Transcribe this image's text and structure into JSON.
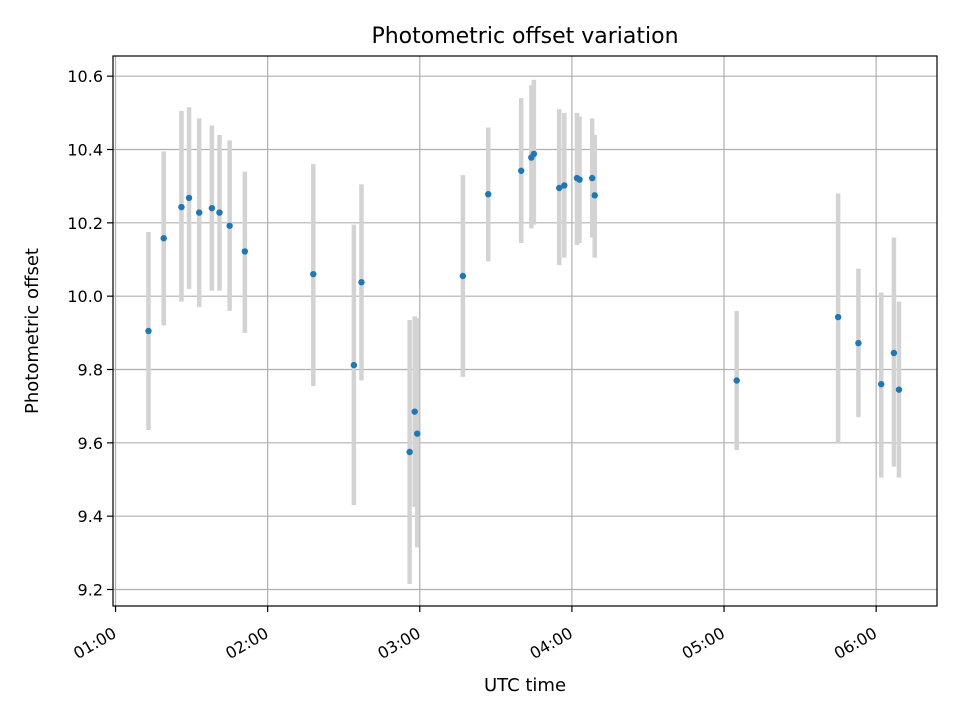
{
  "chart_data": {
    "type": "scatter",
    "title": "Photometric offset variation",
    "xlabel": "UTC time",
    "ylabel": "Photometric offset",
    "x_unit": "UTC",
    "xlim": [
      "00:59",
      "06:24"
    ],
    "ylim": [
      9.155,
      10.655
    ],
    "x_ticks": [
      "01:00",
      "02:00",
      "03:00",
      "04:00",
      "05:00",
      "06:00"
    ],
    "y_ticks": [
      9.2,
      9.4,
      9.6,
      9.8,
      10.0,
      10.2,
      10.4,
      10.6
    ],
    "y_tick_labels": [
      "9.2",
      "9.4",
      "9.6",
      "9.8",
      "10.0",
      "10.2",
      "10.4",
      "10.6"
    ],
    "grid": true,
    "legend": "none",
    "colors": {
      "points": "#1f77b4",
      "errorbars": "#d3d3d3"
    },
    "series": [
      {
        "points": [
          {
            "x": "01:13",
            "y": 9.905,
            "ymin": 9.635,
            "ymax": 10.175
          },
          {
            "x": "01:19",
            "y": 10.158,
            "ymin": 9.92,
            "ymax": 10.395
          },
          {
            "x": "01:26",
            "y": 10.243,
            "ymin": 9.985,
            "ymax": 10.505
          },
          {
            "x": "01:29",
            "y": 10.268,
            "ymin": 10.02,
            "ymax": 10.515
          },
          {
            "x": "01:33",
            "y": 10.228,
            "ymin": 9.97,
            "ymax": 10.485
          },
          {
            "x": "01:38",
            "y": 10.24,
            "ymin": 10.015,
            "ymax": 10.465
          },
          {
            "x": "01:41",
            "y": 10.228,
            "ymin": 10.015,
            "ymax": 10.44
          },
          {
            "x": "01:45",
            "y": 10.192,
            "ymin": 9.96,
            "ymax": 10.425
          },
          {
            "x": "01:51",
            "y": 10.122,
            "ymin": 9.9,
            "ymax": 10.34
          },
          {
            "x": "02:18",
            "y": 10.06,
            "ymin": 9.755,
            "ymax": 10.36
          },
          {
            "x": "02:34",
            "y": 9.812,
            "ymin": 9.43,
            "ymax": 10.195
          },
          {
            "x": "02:37",
            "y": 10.038,
            "ymin": 9.77,
            "ymax": 10.305
          },
          {
            "x": "02:56",
            "y": 9.575,
            "ymin": 9.215,
            "ymax": 9.935
          },
          {
            "x": "02:58",
            "y": 9.685,
            "ymin": 9.425,
            "ymax": 9.945
          },
          {
            "x": "02:59",
            "y": 9.625,
            "ymin": 9.315,
            "ymax": 9.94
          },
          {
            "x": "03:17",
            "y": 10.055,
            "ymin": 9.78,
            "ymax": 10.33
          },
          {
            "x": "03:27",
            "y": 10.278,
            "ymin": 10.095,
            "ymax": 10.46
          },
          {
            "x": "03:40",
            "y": 10.342,
            "ymin": 10.145,
            "ymax": 10.54
          },
          {
            "x": "03:44",
            "y": 10.378,
            "ymin": 10.185,
            "ymax": 10.575
          },
          {
            "x": "03:45",
            "y": 10.388,
            "ymin": 10.195,
            "ymax": 10.59
          },
          {
            "x": "03:55",
            "y": 10.295,
            "ymin": 10.085,
            "ymax": 10.51
          },
          {
            "x": "03:57",
            "y": 10.302,
            "ymin": 10.105,
            "ymax": 10.5
          },
          {
            "x": "04:02",
            "y": 10.322,
            "ymin": 10.14,
            "ymax": 10.5
          },
          {
            "x": "04:03",
            "y": 10.318,
            "ymin": 10.145,
            "ymax": 10.49
          },
          {
            "x": "04:08",
            "y": 10.322,
            "ymin": 10.16,
            "ymax": 10.485
          },
          {
            "x": "04:09",
            "y": 10.275,
            "ymin": 10.105,
            "ymax": 10.44
          },
          {
            "x": "05:05",
            "y": 9.77,
            "ymin": 9.58,
            "ymax": 9.96
          },
          {
            "x": "05:45",
            "y": 9.943,
            "ymin": 9.6,
            "ymax": 10.28
          },
          {
            "x": "05:53",
            "y": 9.872,
            "ymin": 9.67,
            "ymax": 10.075
          },
          {
            "x": "06:02",
            "y": 9.76,
            "ymin": 9.505,
            "ymax": 10.01
          },
          {
            "x": "06:07",
            "y": 9.845,
            "ymin": 9.535,
            "ymax": 10.16
          },
          {
            "x": "06:09",
            "y": 9.745,
            "ymin": 9.505,
            "ymax": 9.985
          }
        ]
      }
    ]
  }
}
